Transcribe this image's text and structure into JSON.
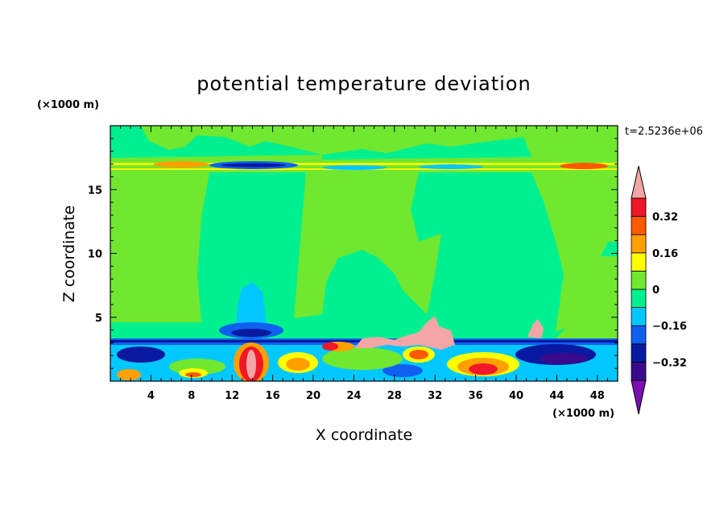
{
  "chart_data": {
    "type": "heatmap",
    "title": "potential temperature deviation",
    "xlabel": "X coordinate",
    "ylabel": "Z coordinate",
    "x_unit": "(×1000 m)",
    "y_unit": "(×1000 m)",
    "time_label": "t=2.5236e+06",
    "xlim": [
      0,
      50
    ],
    "ylim": [
      0,
      20
    ],
    "x_ticks": [
      4,
      8,
      12,
      16,
      20,
      24,
      28,
      32,
      36,
      40,
      44,
      48
    ],
    "y_ticks": [
      5,
      10,
      15
    ],
    "colorbar": {
      "levels": [
        -0.48,
        -0.4,
        -0.32,
        -0.24,
        -0.16,
        -0.08,
        0,
        0.08,
        0.16,
        0.24,
        0.32,
        0.4
      ],
      "tick_labels": [
        "0.32",
        "0.16",
        "0",
        "−0.16",
        "−0.32"
      ],
      "tick_values": [
        0.32,
        0.16,
        0,
        -0.16,
        -0.32
      ],
      "colors": [
        "#7a10b0",
        "#3a0a8c",
        "#0a1aa0",
        "#1060f0",
        "#00c8ff",
        "#00f090",
        "#70e830",
        "#ffff00",
        "#ffa000",
        "#ff5a00",
        "#f01828",
        "#f4a6a6"
      ]
    }
  }
}
